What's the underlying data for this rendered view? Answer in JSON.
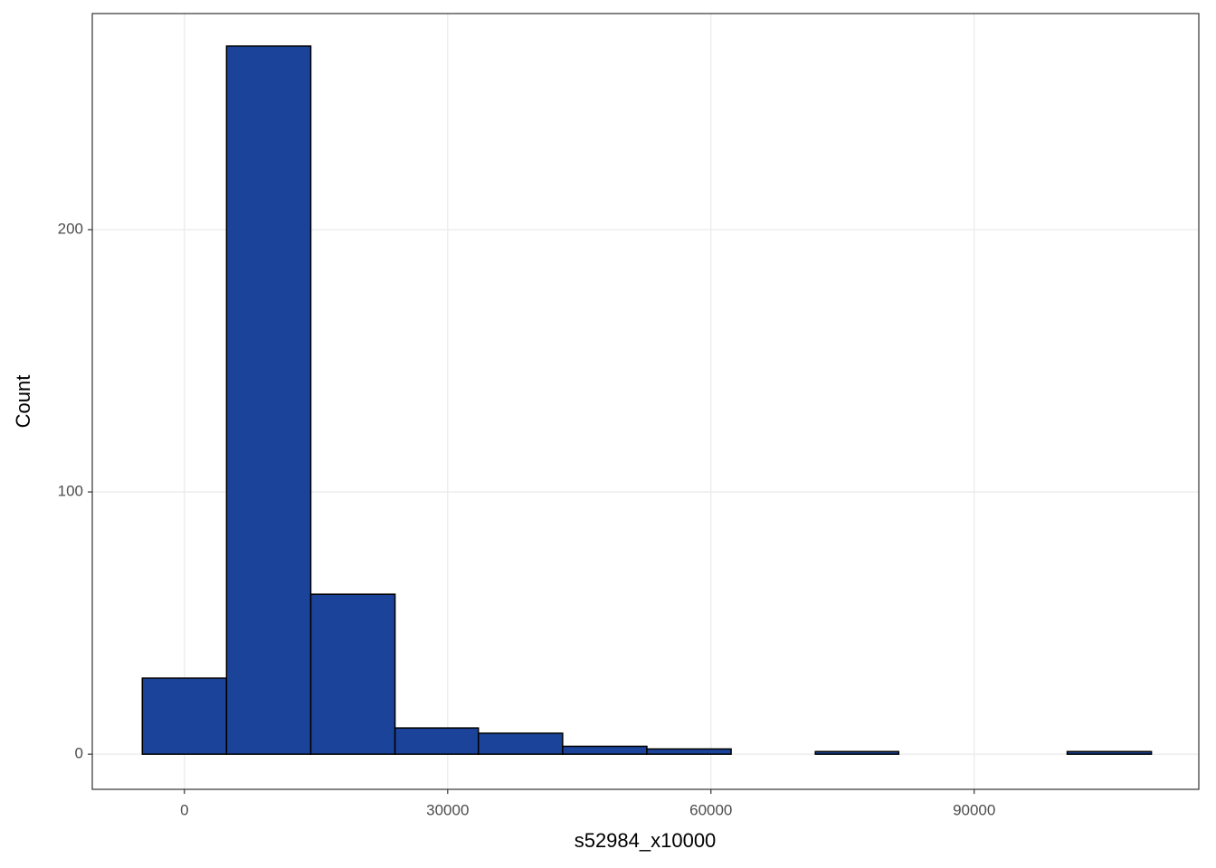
{
  "chart_data": {
    "type": "histogram",
    "x_label": "s52984_x10000",
    "y_label": "Count",
    "bins": [
      -4800,
      4800,
      14400,
      24000,
      33500,
      43100,
      52700,
      62300,
      71900,
      81400,
      91000,
      100600,
      110200
    ],
    "values": [
      29,
      270,
      61,
      10,
      8,
      3,
      2,
      0,
      1,
      0,
      0,
      1
    ],
    "color": "#1a4399",
    "xlim": [
      -10500,
      115600
    ],
    "ylim": [
      -13.4,
      282.4
    ],
    "xticks": [
      0,
      30000,
      60000,
      90000
    ],
    "yticks": [
      0,
      100,
      200
    ],
    "grid": true
  }
}
